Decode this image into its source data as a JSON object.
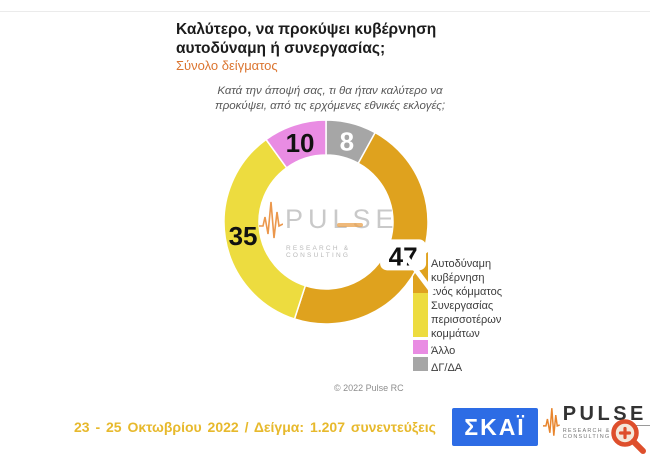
{
  "page": {
    "title_line1": "Καλύτερο, να προκύψει κυβέρνηση",
    "title_line2": "αυτοδύναμη ή συνεργασίας;",
    "subtitle": "Σύνολο δείγματος",
    "question_line1": "Κατά την άποψή σας, τι θα ήταν καλύτερο να",
    "question_line2": "προκύψει, από τις ερχόμενες εθνικές εκλογές;",
    "copyright": "© 2022 Pulse RC",
    "footer_note": "23 - 25 Οκτωβρίου 2022 / Δείγμα: 1.207 συνεντεύξεις"
  },
  "chart_data": {
    "type": "pie",
    "subtype": "donut",
    "title": "Καλύτερο, να προκύψει κυβέρνηση αυτοδύναμη ή συνεργασίας;",
    "sample": "Σύνολο δείγματος",
    "start_angle_deg": 0,
    "direction": "clockwise",
    "legend_position": "right",
    "segments": [
      {
        "label": "ΔΓ/ΔΑ",
        "value": 8,
        "color": "#a6a6a6",
        "label_color": "#ffffff"
      },
      {
        "label": "Αυτοδύναμη κυβέρνηση ενός κόμματος",
        "value": 47,
        "color": "#dfa21e",
        "label_color": "#111111",
        "label_bg": true
      },
      {
        "label": "Συνεργασίας περισσοτέρων κομμάτων",
        "value": 35,
        "color": "#eddc3f",
        "label_color": "#111111"
      },
      {
        "label": "Άλλο",
        "value": 10,
        "color": "#e98ce3",
        "label_color": "#111111"
      }
    ]
  },
  "legend": {
    "items": [
      {
        "color": "#dfa21e",
        "lines": [
          "Αυτοδύναμη",
          "κυβέρνηση",
          "ενός κόμματος"
        ]
      },
      {
        "color": "#eddc3f",
        "lines": [
          "Συνεργασίας",
          "περισσοτέρων",
          "κομμάτων"
        ]
      },
      {
        "color": "#e98ce3",
        "lines": [
          "Άλλο"
        ]
      },
      {
        "color": "#a6a6a6",
        "lines": [
          "ΔΓ/ΔΑ"
        ]
      }
    ]
  },
  "watermark": {
    "name": "PULSE",
    "tagline": "RESEARCH & CONSULTING"
  },
  "logos": {
    "skai_label": "ΣΚΑΪ",
    "pulse_name": "PULSE",
    "pulse_tagline": "RESEARCH & CONSULTING"
  },
  "colors": {
    "accent_orange": "#db7530",
    "footer_gold": "#e7b92c",
    "skai_blue": "#2d6ce5",
    "magnifier_red": "#de4f2c",
    "waveform_orange": "#e8852d"
  }
}
